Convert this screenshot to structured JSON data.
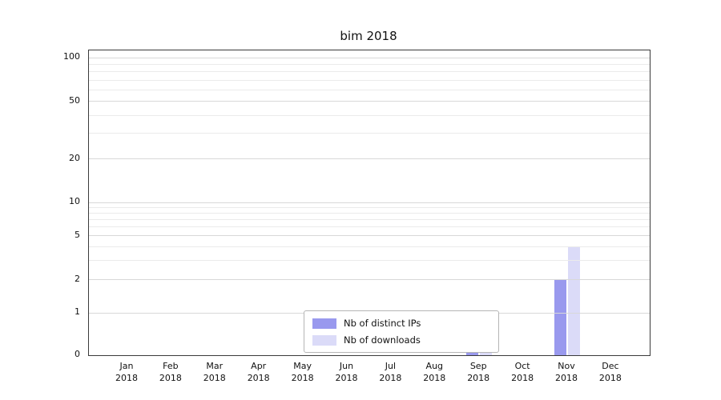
{
  "title": "bim 2018",
  "chart_data": {
    "type": "bar",
    "title": "bim 2018",
    "categories": [
      "Jan 2018",
      "Feb 2018",
      "Mar 2018",
      "Apr 2018",
      "May 2018",
      "Jun 2018",
      "Jul 2018",
      "Aug 2018",
      "Sep 2018",
      "Oct 2018",
      "Nov 2018",
      "Dec 2018"
    ],
    "series": [
      {
        "name": "Nb of distinct IPs",
        "color": "#9999ee",
        "values": [
          0,
          0,
          0,
          0,
          0,
          0,
          0,
          0,
          1,
          0,
          2,
          0
        ]
      },
      {
        "name": "Nb of downloads",
        "color": "#dbdbf8",
        "values": [
          0,
          0,
          0,
          0,
          0,
          0,
          0,
          0,
          1,
          0,
          4,
          0
        ]
      }
    ],
    "yscale": "symlog",
    "yticks": [
      0,
      1,
      2,
      5,
      10,
      20,
      50,
      100
    ],
    "minor_yticks": [
      3,
      4,
      6,
      7,
      8,
      9,
      30,
      40,
      60,
      70,
      80,
      90
    ],
    "ylim": [
      0,
      110
    ],
    "xlabel": "",
    "ylabel": "",
    "grid": true,
    "legend_position": "lower-center-inside"
  },
  "colors": {
    "grid_major": "#d8d8d8",
    "grid_minor": "#ebebeb",
    "axis": "#3a3a3a",
    "background": "#ffffff"
  }
}
